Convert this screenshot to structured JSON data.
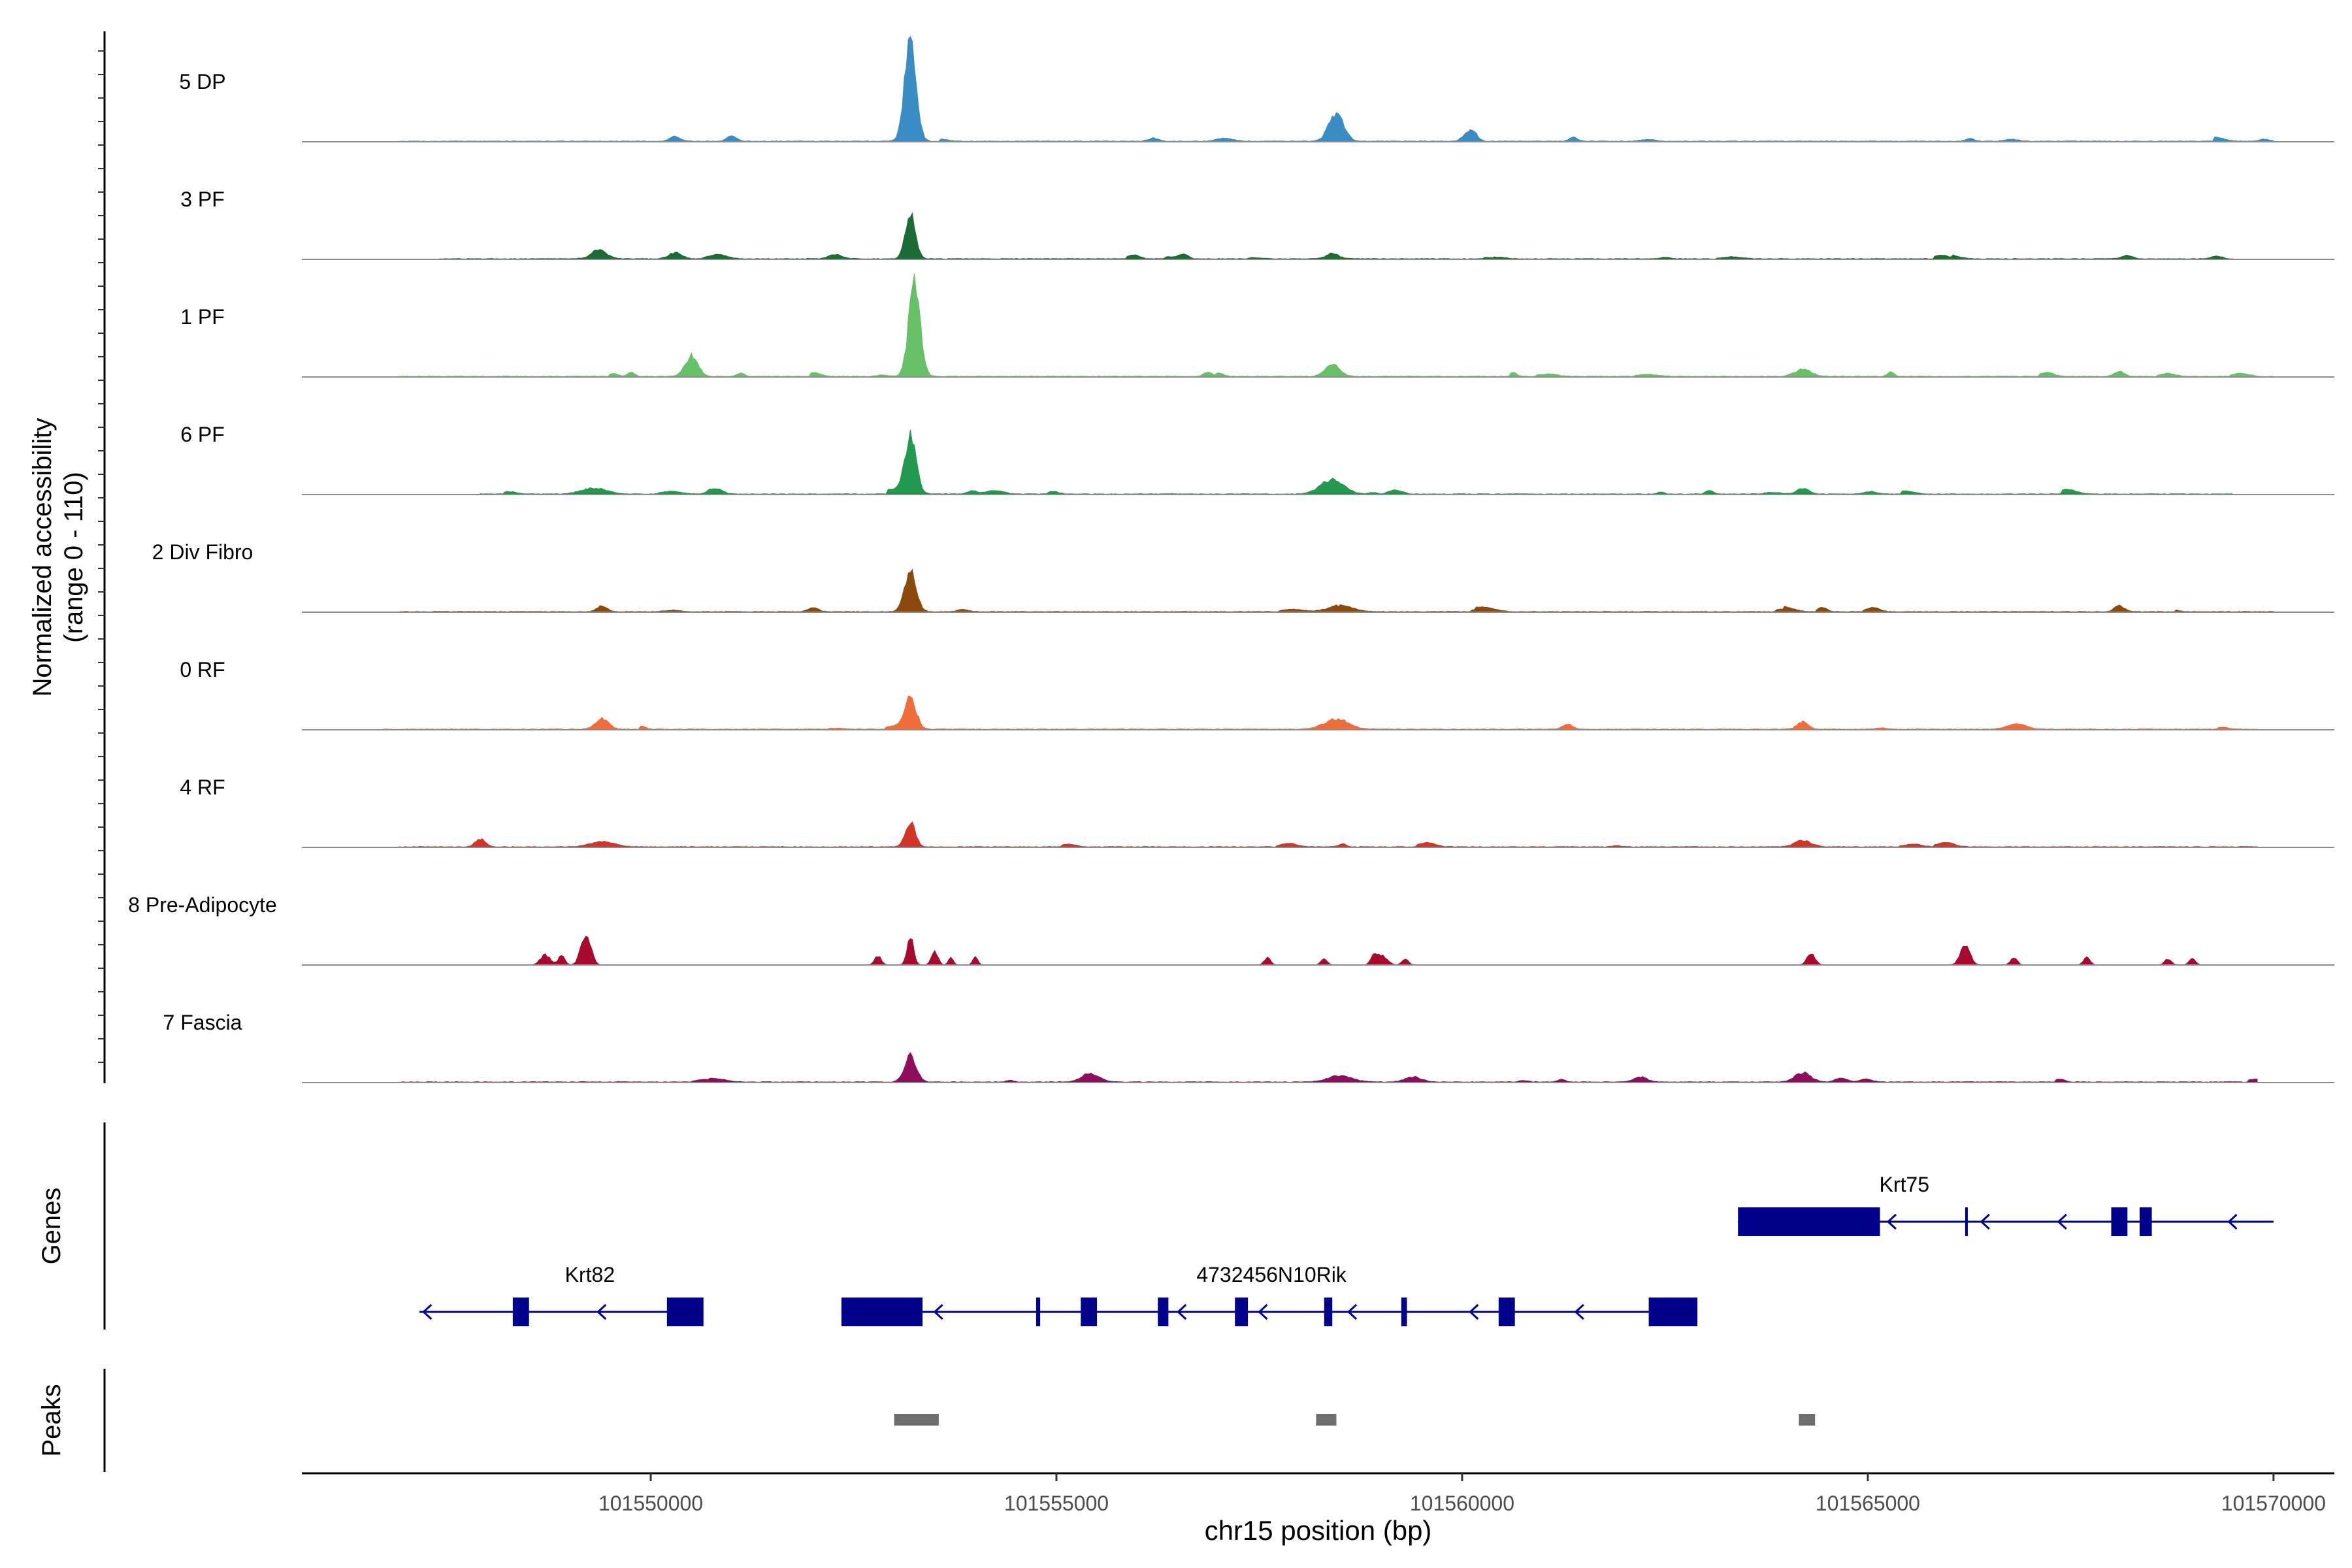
{
  "chart_data": {
    "type": "area",
    "title": "",
    "ylabel_line1": "Normalized accessibility",
    "ylabel_line2": "(range 0 - 110)",
    "ylim": [
      0,
      110
    ],
    "xlabel": "chr15 position (bp)",
    "xlim": [
      101545700,
      101570750
    ],
    "xticks": [
      101550000,
      101555000,
      101560000,
      101565000,
      101570000
    ],
    "xtick_labels": [
      "101550000",
      "101555000",
      "101560000",
      "101565000",
      "101570000"
    ],
    "genes_label": "Genes",
    "peaks_label": "Peaks",
    "tracks": [
      {
        "name": "5 DP",
        "color": "#3a8cc4",
        "extent": [
          101546900,
          101570000
        ],
        "seed": 11,
        "peaks": [
          [
            101553200,
            100,
            70
          ],
          [
            101558450,
            28,
            90
          ],
          [
            101560100,
            12,
            70
          ],
          [
            101550300,
            5,
            60
          ],
          [
            101551000,
            5,
            60
          ],
          [
            101556200,
            3,
            60
          ]
        ]
      },
      {
        "name": "3 PF",
        "color": "#1a6b34",
        "extent": [
          101547400,
          101569500
        ],
        "seed": 23,
        "peaks": [
          [
            101553200,
            48,
            60
          ],
          [
            101549350,
            8,
            90
          ],
          [
            101550300,
            6,
            80
          ],
          [
            101558400,
            5,
            80
          ],
          [
            101569300,
            3,
            60
          ]
        ]
      },
      {
        "name": "1 PF",
        "color": "#66c166",
        "extent": [
          101546900,
          101570000
        ],
        "seed": 37,
        "peaks": [
          [
            101553250,
            90,
            70
          ],
          [
            101550500,
            20,
            80
          ],
          [
            101558400,
            11,
            90
          ],
          [
            101564200,
            7,
            100
          ],
          [
            101568100,
            5,
            60
          ]
        ]
      },
      {
        "name": "6 PF",
        "color": "#23984f",
        "extent": [
          101547900,
          101569500
        ],
        "seed": 41,
        "peaks": [
          [
            101553200,
            55,
            70
          ],
          [
            101558400,
            14,
            140
          ],
          [
            101549300,
            6,
            150
          ],
          [
            101564200,
            6,
            70
          ],
          [
            101550800,
            5,
            80
          ]
        ]
      },
      {
        "name": "2 Div Fibro",
        "color": "#8b4a0c",
        "extent": [
          101546900,
          101570000
        ],
        "seed": 53,
        "peaks": [
          [
            101553200,
            40,
            70
          ],
          [
            101558500,
            6,
            150
          ],
          [
            101549400,
            6,
            60
          ],
          [
            101568100,
            6,
            60
          ],
          [
            101552000,
            4,
            60
          ]
        ]
      },
      {
        "name": "0 RF",
        "color": "#f06c3a",
        "extent": [
          101546700,
          101569800
        ],
        "seed": 67,
        "peaks": [
          [
            101553200,
            30,
            70
          ],
          [
            101549400,
            10,
            80
          ],
          [
            101558450,
            10,
            150
          ],
          [
            101564200,
            7,
            70
          ],
          [
            101561300,
            5,
            60
          ]
        ]
      },
      {
        "name": "4 RF",
        "color": "#d23527",
        "extent": [
          101546900,
          101569800
        ],
        "seed": 79,
        "peaks": [
          [
            101553200,
            25,
            60
          ],
          [
            101547900,
            8,
            60
          ],
          [
            101549400,
            5,
            150
          ],
          [
            101564200,
            6,
            100
          ]
        ]
      },
      {
        "name": "8 Pre-Adipocyte",
        "color": "#a8092f",
        "extent": [
          101546900,
          101569800
        ],
        "seed": 83,
        "sparse": true,
        "peaks": [
          [
            101549200,
            30,
            60
          ],
          [
            101553200,
            28,
            40
          ],
          [
            101548700,
            10,
            60
          ],
          [
            101552800,
            9,
            40
          ],
          [
            101553500,
            14,
            40
          ],
          [
            101566200,
            20,
            60
          ],
          [
            101564300,
            11,
            50
          ],
          [
            101559000,
            10,
            70
          ],
          [
            101557600,
            7,
            40
          ],
          [
            101558300,
            6,
            40
          ],
          [
            101567700,
            8,
            40
          ],
          [
            101568700,
            6,
            40
          ],
          [
            101569000,
            6,
            40
          ],
          [
            101566800,
            8,
            40
          ],
          [
            101559300,
            6,
            40
          ],
          [
            101554000,
            8,
            30
          ],
          [
            101553700,
            7,
            30
          ],
          [
            101558900,
            7,
            30
          ],
          [
            101548900,
            9,
            40
          ]
        ]
      },
      {
        "name": "7 Fascia",
        "color": "#8c0e5c",
        "extent": [
          101546900,
          101569800
        ],
        "seed": 97,
        "peaks": [
          [
            101553200,
            26,
            70
          ],
          [
            101555400,
            8,
            100
          ],
          [
            101558500,
            6,
            150
          ],
          [
            101559400,
            5,
            100
          ],
          [
            101564200,
            9,
            100
          ],
          [
            101562200,
            5,
            80
          ]
        ]
      }
    ],
    "genes": [
      {
        "name": "Krt82",
        "label_pos": 101549250,
        "row": 2,
        "strand": "-",
        "span": [
          101547150,
          101550500
        ],
        "exons": [
          [
            101548300,
            101548500
          ],
          [
            101550200,
            101550650
          ]
        ],
        "arrows": [
          101547200,
          101549350
        ]
      },
      {
        "name": "4732456N10Rik",
        "label_pos": 101557650,
        "row": 2,
        "strand": "-",
        "span": [
          101552350,
          101562850
        ],
        "exons": [
          [
            101552350,
            101553350
          ],
          [
            101554750,
            101554800
          ],
          [
            101555300,
            101555500
          ],
          [
            101556250,
            101556380
          ],
          [
            101557200,
            101557360
          ],
          [
            101558300,
            101558400
          ],
          [
            101559250,
            101559320
          ],
          [
            101560450,
            101560650
          ],
          [
            101562300,
            101562900
          ]
        ],
        "arrows": [
          101553500,
          101556500,
          101557500,
          101558600,
          101560100,
          101561400
        ]
      },
      {
        "name": "Krt75",
        "label_pos": 101565450,
        "row": 1,
        "strand": "-",
        "span": [
          101563400,
          101570000
        ],
        "exons": [
          [
            101563400,
            101565150
          ],
          [
            101566200,
            101566230
          ],
          [
            101568000,
            101568200
          ],
          [
            101568350,
            101568500
          ]
        ],
        "arrows": [
          101565250,
          101566400,
          101567350,
          101569450
        ]
      }
    ],
    "peak_regions": [
      [
        101553000,
        101553550
      ],
      [
        101558200,
        101558450
      ],
      [
        101564150,
        101564350
      ]
    ]
  }
}
